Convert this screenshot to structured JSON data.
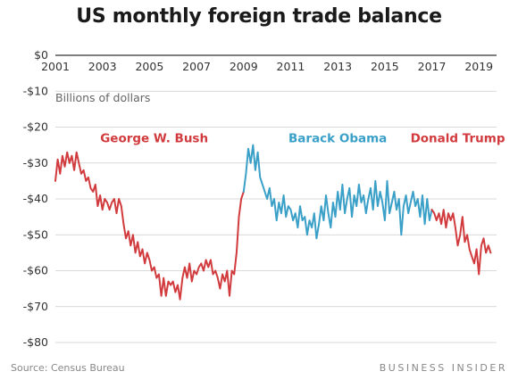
{
  "title": "US monthly foreign trade balance",
  "footer": {
    "source": "Source: Census Bureau",
    "brand": "BUSINESS INSIDER"
  },
  "chart_data": {
    "type": "line",
    "title": "US monthly foreign trade balance",
    "ylabel": "Billions of dollars",
    "xlabel": "",
    "xlim": [
      2001,
      2019.75
    ],
    "ylim": [
      -80,
      0
    ],
    "x_ticks": [
      "2001",
      "2003",
      "2005",
      "2007",
      "2009",
      "2011",
      "2013",
      "2015",
      "2017",
      "2019"
    ],
    "y_ticks": [
      "$0",
      "-$10",
      "-$20",
      "-$30",
      "-$40",
      "-$50",
      "-$60",
      "-$70",
      "-$80"
    ],
    "grid": "horizontal",
    "colors": {
      "bush": "#d23b3e",
      "obama": "#3aa0c8",
      "trump": "#d23b3e",
      "grid": "#cccccc",
      "zero_line": "#333333"
    },
    "annotations": [
      {
        "text": "George W. Bush",
        "x": 2005.2,
        "y": -23,
        "color": "#d23b3e"
      },
      {
        "text": "Barack Obama",
        "x": 2013.0,
        "y": -23,
        "color": "#3aa0c8"
      },
      {
        "text": "Donald Trump",
        "x": 2018.1,
        "y": -23,
        "color": "#d23b3e"
      }
    ],
    "series": [
      {
        "name": "George W. Bush",
        "color": "#d23b3e",
        "x": [
          2001.0,
          2001.1,
          2001.2,
          2001.3,
          2001.4,
          2001.5,
          2001.6,
          2001.7,
          2001.8,
          2001.9,
          2002.0,
          2002.1,
          2002.2,
          2002.3,
          2002.4,
          2002.5,
          2002.6,
          2002.7,
          2002.8,
          2002.9,
          2003.0,
          2003.1,
          2003.2,
          2003.3,
          2003.4,
          2003.5,
          2003.6,
          2003.7,
          2003.8,
          2003.9,
          2004.0,
          2004.1,
          2004.2,
          2004.3,
          2004.4,
          2004.5,
          2004.6,
          2004.7,
          2004.8,
          2004.9,
          2005.0,
          2005.1,
          2005.2,
          2005.3,
          2005.4,
          2005.5,
          2005.6,
          2005.7,
          2005.8,
          2005.9,
          2006.0,
          2006.1,
          2006.2,
          2006.3,
          2006.4,
          2006.5,
          2006.6,
          2006.7,
          2006.8,
          2006.9,
          2007.0,
          2007.1,
          2007.2,
          2007.3,
          2007.4,
          2007.5,
          2007.6,
          2007.7,
          2007.8,
          2007.9,
          2008.0,
          2008.1,
          2008.2,
          2008.3,
          2008.4,
          2008.5,
          2008.6,
          2008.7,
          2008.8,
          2008.9,
          2009.0
        ],
        "values": [
          -35,
          -29,
          -33,
          -28,
          -31,
          -27,
          -30,
          -28,
          -32,
          -27,
          -30,
          -33,
          -32,
          -35,
          -34,
          -37,
          -38,
          -36,
          -42,
          -39,
          -43,
          -40,
          -41,
          -43,
          -41,
          -40,
          -44,
          -40,
          -42,
          -47,
          -51,
          -49,
          -53,
          -50,
          -55,
          -52,
          -56,
          -54,
          -58,
          -55,
          -57,
          -60,
          -59,
          -62,
          -61,
          -67,
          -62,
          -67,
          -63,
          -64,
          -63,
          -66,
          -64,
          -68,
          -62,
          -59,
          -62,
          -58,
          -63,
          -60,
          -61,
          -59,
          -58,
          -60,
          -57,
          -59,
          -57,
          -61,
          -60,
          -62,
          -65,
          -61,
          -63,
          -60,
          -67,
          -60,
          -61,
          -55,
          -45,
          -40,
          -38
        ]
      },
      {
        "name": "Barack Obama",
        "color": "#3aa0c8",
        "x": [
          2009.0,
          2009.1,
          2009.2,
          2009.3,
          2009.4,
          2009.5,
          2009.6,
          2009.7,
          2009.8,
          2009.9,
          2010.0,
          2010.1,
          2010.2,
          2010.3,
          2010.4,
          2010.5,
          2010.6,
          2010.7,
          2010.8,
          2010.9,
          2011.0,
          2011.1,
          2011.2,
          2011.3,
          2011.4,
          2011.5,
          2011.6,
          2011.7,
          2011.8,
          2011.9,
          2012.0,
          2012.1,
          2012.2,
          2012.3,
          2012.4,
          2012.5,
          2012.6,
          2012.7,
          2012.8,
          2012.9,
          2013.0,
          2013.1,
          2013.2,
          2013.3,
          2013.4,
          2013.5,
          2013.6,
          2013.7,
          2013.8,
          2013.9,
          2014.0,
          2014.1,
          2014.2,
          2014.3,
          2014.4,
          2014.5,
          2014.6,
          2014.7,
          2014.8,
          2014.9,
          2015.0,
          2015.1,
          2015.2,
          2015.3,
          2015.4,
          2015.5,
          2015.6,
          2015.7,
          2015.8,
          2015.9,
          2016.0,
          2016.1,
          2016.2,
          2016.3,
          2016.4,
          2016.5,
          2016.6,
          2016.7,
          2016.8,
          2016.9,
          2017.0
        ],
        "values": [
          -38,
          -33,
          -26,
          -30,
          -25,
          -32,
          -27,
          -34,
          -36,
          -38,
          -40,
          -37,
          -42,
          -40,
          -46,
          -41,
          -44,
          -39,
          -45,
          -42,
          -43,
          -46,
          -44,
          -48,
          -42,
          -46,
          -45,
          -50,
          -46,
          -48,
          -44,
          -51,
          -47,
          -42,
          -46,
          -39,
          -44,
          -48,
          -41,
          -45,
          -38,
          -43,
          -36,
          -44,
          -40,
          -37,
          -45,
          -39,
          -42,
          -36,
          -41,
          -39,
          -44,
          -40,
          -37,
          -43,
          -35,
          -42,
          -38,
          -41,
          -46,
          -35,
          -44,
          -41,
          -38,
          -43,
          -40,
          -50,
          -42,
          -39,
          -44,
          -41,
          -38,
          -42,
          -40,
          -45,
          -39,
          -47,
          -40,
          -46,
          -43
        ]
      },
      {
        "name": "Donald Trump",
        "color": "#d23b3e",
        "x": [
          2017.0,
          2017.1,
          2017.2,
          2017.3,
          2017.4,
          2017.5,
          2017.6,
          2017.7,
          2017.8,
          2017.9,
          2018.0,
          2018.1,
          2018.2,
          2018.3,
          2018.4,
          2018.5,
          2018.6,
          2018.7,
          2018.8,
          2018.9,
          2019.0,
          2019.1,
          2019.2,
          2019.3,
          2019.4,
          2019.5
        ],
        "values": [
          -43,
          -44,
          -46,
          -44,
          -47,
          -43,
          -48,
          -44,
          -46,
          -44,
          -48,
          -53,
          -50,
          -45,
          -52,
          -50,
          -54,
          -56,
          -58,
          -54,
          -61,
          -53,
          -51,
          -55,
          -53,
          -55
        ]
      }
    ]
  }
}
